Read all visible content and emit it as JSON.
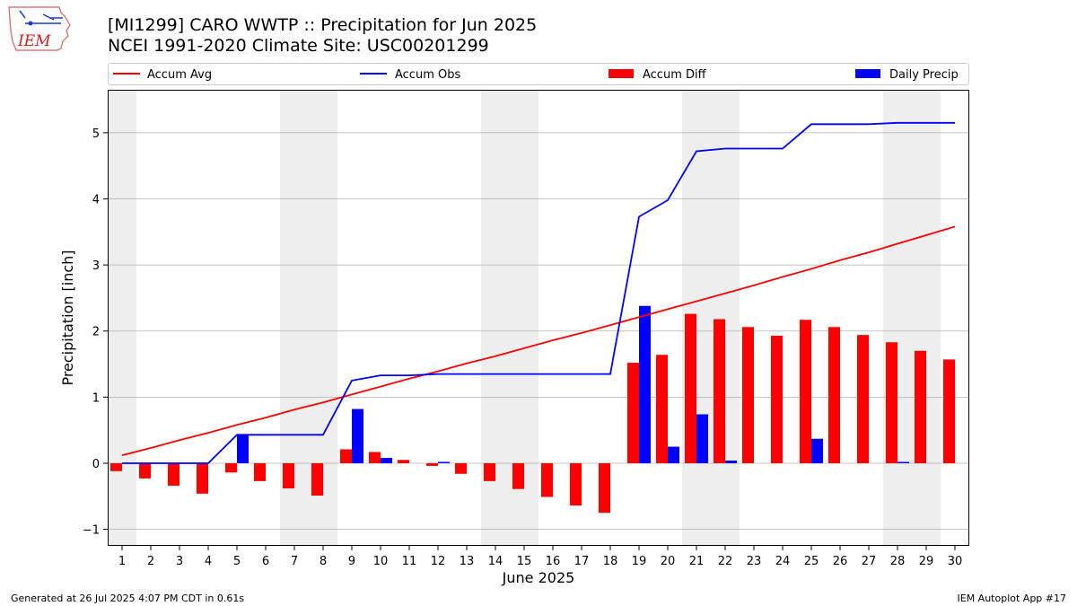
{
  "header": {
    "title_line1": "[MI1299] CARO WWTP :: Precipitation for Jun 2025",
    "title_line2": "NCEI 1991-2020 Climate Site: USC00201299"
  },
  "logo": {
    "text": "IEM"
  },
  "footer": {
    "generated": "Generated at 26 Jul 2025 4:07 PM CDT in 0.61s",
    "app": "IEM Autoplot App #17"
  },
  "colors": {
    "accum_avg": "#ff0000",
    "accum_obs": "#0000ff",
    "accum_diff": "#ff0000",
    "daily_precip": "#0000ff",
    "weekend_shade": "#eeeeee",
    "grid": "#b0b0b0"
  },
  "chart_data": {
    "type": "bar",
    "xlabel": "June 2025",
    "ylabel": "Precipitation [inch]",
    "ylim": [
      -1.25,
      5.65
    ],
    "yticks": [
      -1,
      0,
      1,
      2,
      3,
      4,
      5
    ],
    "xlim": [
      0.5,
      30.5
    ],
    "grid": "horizontal",
    "legend_position": "top",
    "x": [
      1,
      2,
      3,
      4,
      5,
      6,
      7,
      8,
      9,
      10,
      11,
      12,
      13,
      14,
      15,
      16,
      17,
      18,
      19,
      20,
      21,
      22,
      23,
      24,
      25,
      26,
      27,
      28,
      29,
      30
    ],
    "shaded_weekends": [
      [
        1,
        1
      ],
      [
        7,
        8
      ],
      [
        14,
        15
      ],
      [
        21,
        22
      ],
      [
        28,
        29
      ]
    ],
    "series": [
      {
        "name": "Accum Avg",
        "kind": "line",
        "values": [
          0.12,
          0.23,
          0.35,
          0.46,
          0.58,
          0.69,
          0.81,
          0.92,
          1.04,
          1.16,
          1.28,
          1.39,
          1.51,
          1.62,
          1.74,
          1.86,
          1.97,
          2.09,
          2.21,
          2.33,
          2.45,
          2.57,
          2.69,
          2.82,
          2.94,
          3.07,
          3.19,
          3.32,
          3.45,
          3.58
        ]
      },
      {
        "name": "Accum Obs",
        "kind": "line",
        "values": [
          0.0,
          0.0,
          0.0,
          0.0,
          0.43,
          0.43,
          0.43,
          0.43,
          1.25,
          1.33,
          1.33,
          1.35,
          1.35,
          1.35,
          1.35,
          1.35,
          1.35,
          1.35,
          3.73,
          3.98,
          4.72,
          4.76,
          4.76,
          4.76,
          5.13,
          5.13,
          5.13,
          5.15,
          5.15,
          5.15
        ]
      },
      {
        "name": "Accum Diff",
        "kind": "bar",
        "values": [
          -0.12,
          -0.23,
          -0.34,
          -0.46,
          -0.14,
          -0.27,
          -0.38,
          -0.49,
          0.21,
          0.17,
          0.05,
          -0.04,
          -0.16,
          -0.27,
          -0.39,
          -0.51,
          -0.64,
          -0.75,
          1.52,
          1.64,
          2.26,
          2.18,
          2.06,
          1.93,
          2.17,
          2.06,
          1.94,
          1.83,
          1.7,
          1.57
        ]
      },
      {
        "name": "Daily Precip",
        "kind": "bar",
        "values": [
          0,
          0,
          0,
          0,
          0.43,
          0,
          0,
          0,
          0.82,
          0.08,
          0,
          0.02,
          0,
          0,
          0,
          0,
          0,
          0,
          2.38,
          0.25,
          0.74,
          0.04,
          0,
          0,
          0.37,
          0,
          0,
          0.02,
          0,
          0
        ]
      }
    ]
  }
}
